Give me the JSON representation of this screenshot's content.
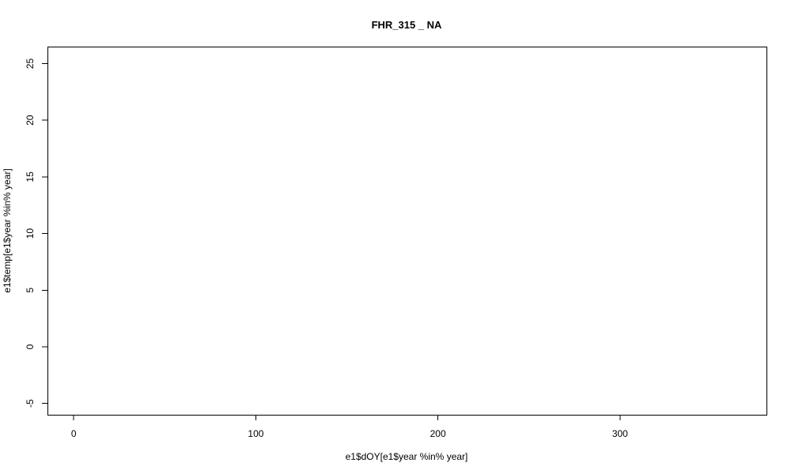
{
  "chart_data": {
    "type": "line",
    "title": "FHR_315 _ NA",
    "xlabel": "e1$dOY[e1$year %in% year]",
    "ylabel": "e1$temp[e1$year %in% year]",
    "x_ticks": [
      0,
      100,
      200,
      300
    ],
    "y_ticks": [
      -5,
      0,
      5,
      10,
      15,
      20,
      25
    ],
    "x_tick_labels": [
      "0",
      "100",
      "200",
      "300"
    ],
    "y_tick_labels": [
      "-5",
      "0",
      "5",
      "10",
      "15",
      "20",
      "25"
    ],
    "xlim": [
      -14.44,
      380.44
    ],
    "ylim": [
      -6,
      26.5
    ],
    "series": [],
    "grid": false,
    "colors": {
      "foreground": "#000000",
      "background": "#ffffff"
    }
  }
}
